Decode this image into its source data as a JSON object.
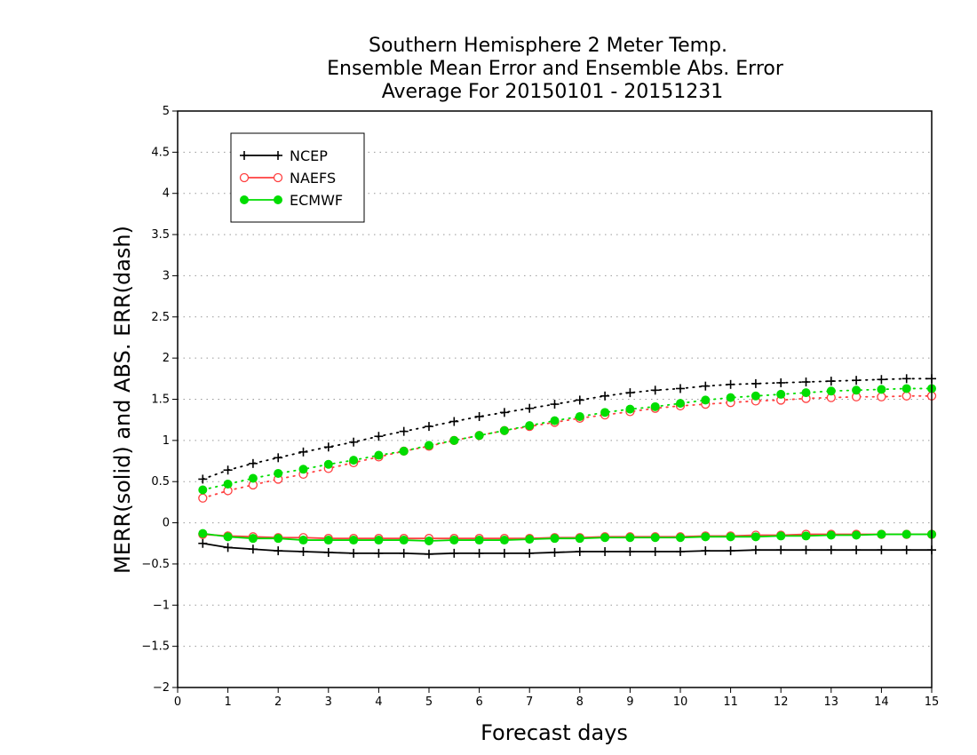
{
  "chart_data": {
    "type": "line",
    "title_lines": [
      "Southern Hemisphere 2 Meter Temp.",
      "Ensemble Mean Error and Ensemble Abs. Error",
      "Average For 20150101 - 20151231"
    ],
    "xlabel": "Forecast days",
    "ylabel": "MERR(solid) and ABS. ERR(dash)",
    "xlim": [
      0,
      15
    ],
    "ylim": [
      -2,
      5
    ],
    "x_ticks": [
      "0",
      "1",
      "2",
      "3",
      "4",
      "5",
      "6",
      "7",
      "8",
      "9",
      "10",
      "11",
      "12",
      "13",
      "14",
      "15"
    ],
    "y_ticks": [
      "5",
      "4.5",
      "4",
      "3.5",
      "3",
      "2.5",
      "2",
      "1.5",
      "1",
      "0.5",
      "0",
      "−0.5",
      "−1",
      "−1.5",
      "−2"
    ],
    "y_tick_values": [
      5,
      4.5,
      4,
      3.5,
      3,
      2.5,
      2,
      1.5,
      1,
      0.5,
      0,
      -0.5,
      -1,
      -1.5,
      -2
    ],
    "grid": "horizontal dotted",
    "legend_position": "top-left",
    "x": [
      0.5,
      1,
      1.5,
      2,
      2.5,
      3,
      3.5,
      4,
      4.5,
      5,
      5.5,
      6,
      6.5,
      7,
      7.5,
      8,
      8.5,
      9,
      9.5,
      10,
      10.5,
      11,
      11.5,
      12,
      12.5,
      13,
      13.5,
      14,
      14.5,
      15
    ],
    "series": [
      {
        "name": "NCEP",
        "color": "#000000",
        "marker": "plus",
        "merr": [
          -0.25,
          -0.3,
          -0.32,
          -0.34,
          -0.35,
          -0.36,
          -0.37,
          -0.37,
          -0.37,
          -0.38,
          -0.37,
          -0.37,
          -0.37,
          -0.37,
          -0.36,
          -0.35,
          -0.35,
          -0.35,
          -0.35,
          -0.35,
          -0.34,
          -0.34,
          -0.33,
          -0.33,
          -0.33,
          -0.33,
          -0.33,
          -0.33,
          -0.33,
          -0.33
        ],
        "abs_err": [
          0.53,
          0.64,
          0.72,
          0.79,
          0.86,
          0.92,
          0.98,
          1.05,
          1.11,
          1.17,
          1.23,
          1.29,
          1.34,
          1.39,
          1.44,
          1.49,
          1.54,
          1.58,
          1.61,
          1.63,
          1.66,
          1.68,
          1.69,
          1.7,
          1.71,
          1.72,
          1.73,
          1.74,
          1.75,
          1.75
        ]
      },
      {
        "name": "NAEFS",
        "color": "#ff4040",
        "marker": "open-circle",
        "merr": [
          -0.14,
          -0.16,
          -0.17,
          -0.18,
          -0.18,
          -0.19,
          -0.19,
          -0.19,
          -0.19,
          -0.19,
          -0.19,
          -0.19,
          -0.19,
          -0.19,
          -0.18,
          -0.18,
          -0.17,
          -0.17,
          -0.17,
          -0.17,
          -0.16,
          -0.16,
          -0.15,
          -0.15,
          -0.14,
          -0.14,
          -0.14,
          -0.14,
          -0.14,
          -0.14
        ],
        "abs_err": [
          0.3,
          0.39,
          0.46,
          0.53,
          0.59,
          0.66,
          0.73,
          0.8,
          0.87,
          0.93,
          1.0,
          1.06,
          1.12,
          1.17,
          1.22,
          1.27,
          1.31,
          1.35,
          1.39,
          1.42,
          1.44,
          1.46,
          1.48,
          1.49,
          1.51,
          1.52,
          1.53,
          1.53,
          1.54,
          1.54
        ]
      },
      {
        "name": "ECMWF",
        "color": "#00dd00",
        "marker": "filled-circle",
        "merr": [
          -0.13,
          -0.17,
          -0.19,
          -0.19,
          -0.21,
          -0.21,
          -0.21,
          -0.21,
          -0.21,
          -0.22,
          -0.21,
          -0.21,
          -0.21,
          -0.2,
          -0.19,
          -0.19,
          -0.18,
          -0.18,
          -0.18,
          -0.18,
          -0.17,
          -0.17,
          -0.17,
          -0.16,
          -0.16,
          -0.15,
          -0.15,
          -0.14,
          -0.14,
          -0.14
        ],
        "abs_err": [
          0.4,
          0.47,
          0.54,
          0.6,
          0.65,
          0.71,
          0.76,
          0.82,
          0.87,
          0.94,
          1.0,
          1.06,
          1.12,
          1.18,
          1.24,
          1.29,
          1.34,
          1.38,
          1.41,
          1.45,
          1.49,
          1.52,
          1.54,
          1.56,
          1.58,
          1.6,
          1.61,
          1.62,
          1.63,
          1.63
        ]
      }
    ]
  }
}
